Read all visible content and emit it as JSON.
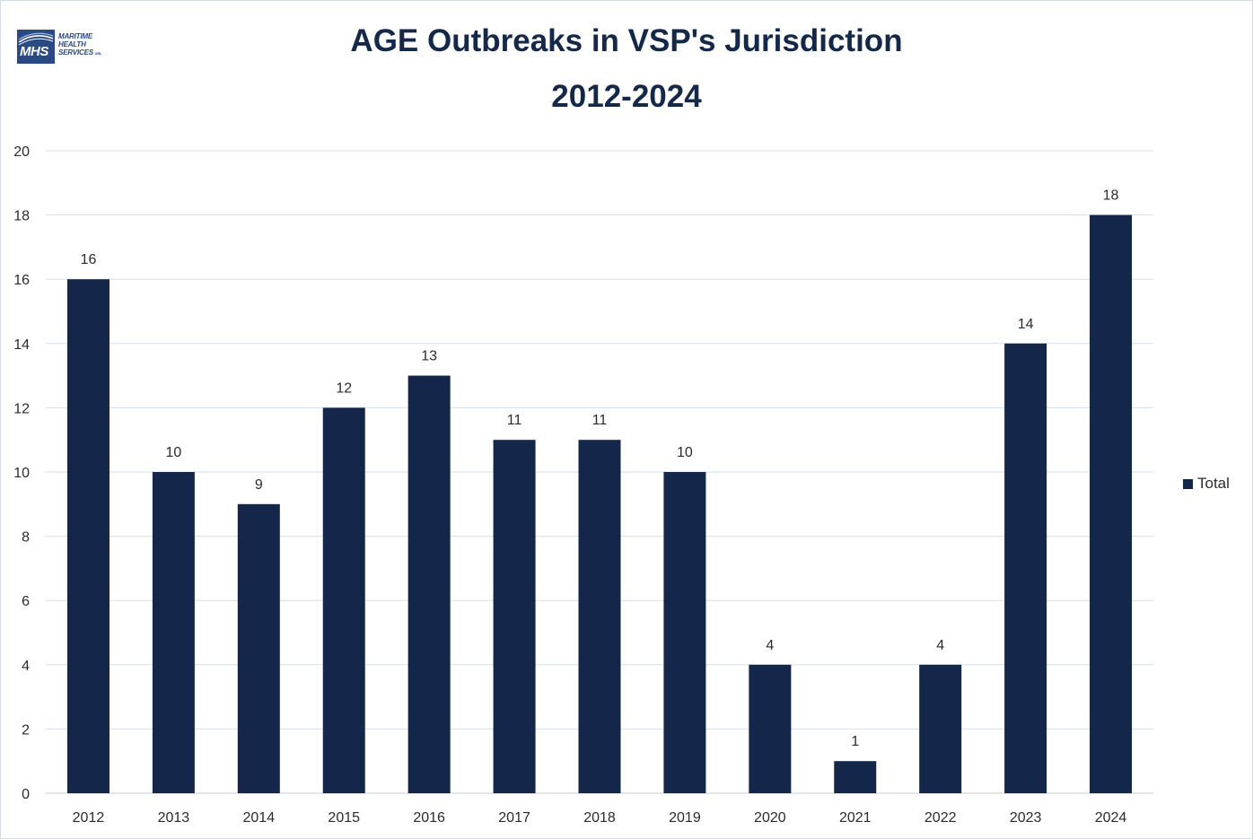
{
  "logo": {
    "abbr": "MHS",
    "line1": "MARITIME",
    "line2": "HEALTH",
    "line3": "SERVICES",
    "suffix": "SRL",
    "color": "#2a4a84"
  },
  "chart_data": {
    "type": "bar",
    "title": "AGE Outbreaks in VSP's Jurisdiction",
    "subtitle": "2012-2024",
    "categories": [
      "2012",
      "2013",
      "2014",
      "2015",
      "2016",
      "2017",
      "2018",
      "2019",
      "2020",
      "2021",
      "2022",
      "2023",
      "2024"
    ],
    "series": [
      {
        "name": "Total",
        "values": [
          16,
          10,
          9,
          12,
          13,
          11,
          11,
          10,
          4,
          1,
          4,
          14,
          18
        ],
        "color": "#14264a"
      }
    ],
    "ylim": [
      0,
      20
    ],
    "yticks": [
      0,
      2,
      4,
      6,
      8,
      10,
      12,
      14,
      16,
      18,
      20
    ],
    "xlabel": "",
    "ylabel": "",
    "grid": true,
    "legend": "right",
    "data_labels": true
  }
}
